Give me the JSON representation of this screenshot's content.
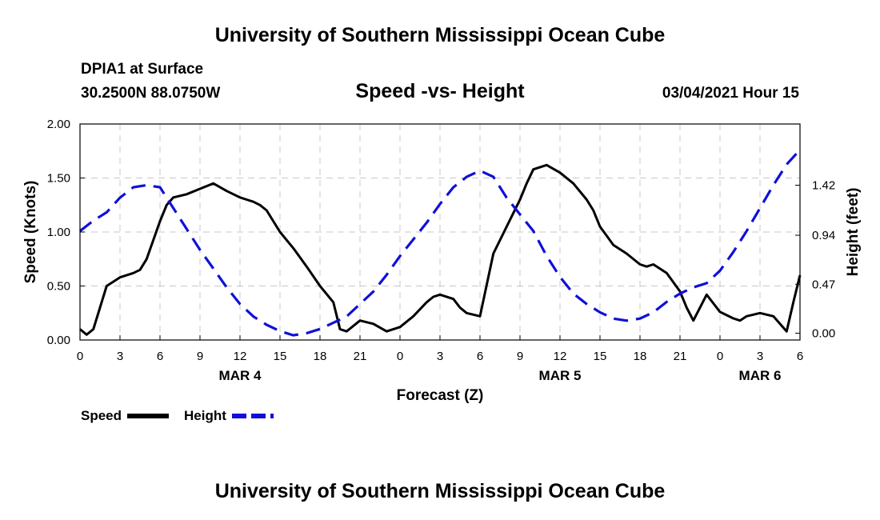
{
  "header": {
    "title": "University of Southern Mississippi Ocean Cube",
    "station": "DPIA1 at Surface",
    "coords": "30.2500N 88.0750W",
    "chart_title": "Speed -vs- Height",
    "datetime": "03/04/2021 Hour 15"
  },
  "footer": {
    "title": "University of Southern Mississippi Ocean Cube"
  },
  "colors": {
    "speed": "#000000",
    "height": "#1010d8",
    "grid": "#c8c8c8"
  },
  "chart_data": {
    "type": "line",
    "title": "Speed -vs- Height",
    "xlabel": "Forecast (Z)",
    "ylabel": "Speed (Knots)",
    "y2label": "Height (feet)",
    "xlim": [
      0,
      54
    ],
    "ylim": [
      0,
      2
    ],
    "y2lim": [
      -0.0655,
      2.0075
    ],
    "x_ticks": [
      0,
      3,
      6,
      9,
      12,
      15,
      18,
      21,
      24,
      27,
      30,
      33,
      36,
      39,
      42,
      45,
      48,
      51,
      54
    ],
    "x_tick_labels": [
      "0",
      "3",
      "6",
      "9",
      "12",
      "15",
      "18",
      "21",
      "0",
      "3",
      "6",
      "9",
      "12",
      "15",
      "18",
      "21",
      "0",
      "3",
      "6"
    ],
    "y_ticks": [
      0,
      0.5,
      1,
      1.5,
      2
    ],
    "y_tick_labels": [
      "0.00",
      "0.50",
      "1.00",
      "1.50",
      "2.00"
    ],
    "y2_ticks": [
      0,
      0.47,
      0.94,
      1.42
    ],
    "y2_tick_labels": [
      "0.00",
      "0.47",
      "0.94",
      "1.42"
    ],
    "date_labels": [
      {
        "x": 12,
        "label": "MAR 4"
      },
      {
        "x": 36,
        "label": "MAR 5"
      },
      {
        "x": 51,
        "label": "MAR 6"
      }
    ],
    "legend": [
      {
        "name": "Speed",
        "style": "solid"
      },
      {
        "name": "Height",
        "style": "dashed"
      }
    ],
    "series": [
      {
        "name": "Speed",
        "axis": "left",
        "x": [
          0,
          0.5,
          1,
          1.5,
          2,
          3,
          4,
          4.5,
          5,
          6,
          6.5,
          7,
          8,
          9,
          10,
          11,
          12,
          12.5,
          13,
          13.5,
          14,
          15,
          16,
          17,
          18,
          19,
          19.5,
          20,
          21,
          22,
          23,
          24,
          25,
          26,
          26.5,
          27,
          28,
          28.5,
          29,
          30,
          31,
          32,
          33,
          33.5,
          34,
          35,
          36,
          37,
          38,
          38.5,
          39,
          40,
          40.5,
          41,
          42,
          42.5,
          43,
          44,
          45,
          45.5,
          46,
          47,
          48,
          49,
          49.5,
          50,
          51,
          52,
          53,
          53.5,
          54
        ],
        "values": [
          0.1,
          0.05,
          0.1,
          0.3,
          0.5,
          0.58,
          0.62,
          0.65,
          0.75,
          1.1,
          1.25,
          1.32,
          1.35,
          1.4,
          1.45,
          1.38,
          1.32,
          1.3,
          1.28,
          1.25,
          1.2,
          1.0,
          0.85,
          0.68,
          0.5,
          0.35,
          0.1,
          0.08,
          0.18,
          0.15,
          0.08,
          0.12,
          0.22,
          0.35,
          0.4,
          0.42,
          0.38,
          0.3,
          0.25,
          0.22,
          0.8,
          1.05,
          1.3,
          1.45,
          1.58,
          1.62,
          1.55,
          1.45,
          1.3,
          1.2,
          1.05,
          0.88,
          0.84,
          0.8,
          0.7,
          0.68,
          0.7,
          0.62,
          0.45,
          0.3,
          0.18,
          0.42,
          0.26,
          0.2,
          0.18,
          0.22,
          0.25,
          0.22,
          0.08,
          0.35,
          0.6
        ]
      },
      {
        "name": "Height",
        "axis": "right",
        "x": [
          0,
          1,
          2,
          3,
          4,
          5,
          6,
          7,
          8,
          9,
          10,
          11,
          12,
          13,
          14,
          15,
          16,
          17,
          18,
          19,
          20,
          21,
          22,
          23,
          24,
          25,
          26,
          27,
          28,
          29,
          30,
          31,
          32,
          33,
          34,
          35,
          36,
          37,
          38,
          39,
          40,
          41,
          42,
          43,
          44,
          45,
          46,
          47,
          48,
          49,
          50,
          51,
          52,
          53,
          54
        ],
        "values": [
          0.98,
          1.08,
          1.16,
          1.3,
          1.4,
          1.42,
          1.4,
          1.2,
          1.0,
          0.8,
          0.62,
          0.44,
          0.28,
          0.16,
          0.08,
          0.02,
          -0.02,
          0.0,
          0.04,
          0.1,
          0.16,
          0.28,
          0.4,
          0.56,
          0.74,
          0.9,
          1.06,
          1.24,
          1.4,
          1.5,
          1.56,
          1.5,
          1.3,
          1.14,
          0.98,
          0.74,
          0.54,
          0.38,
          0.28,
          0.2,
          0.14,
          0.12,
          0.14,
          0.2,
          0.3,
          0.38,
          0.44,
          0.48,
          0.6,
          0.78,
          0.98,
          1.2,
          1.42,
          1.62,
          1.76
        ]
      }
    ]
  }
}
